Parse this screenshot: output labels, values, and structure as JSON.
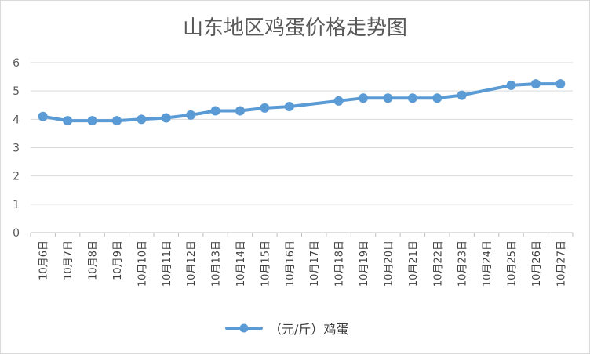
{
  "chart_data": {
    "type": "line",
    "title": "山东地区鸡蛋价格走势图",
    "categories": [
      "10月6日",
      "10月7日",
      "10月8日",
      "10月9日",
      "10月10日",
      "10月11日",
      "10月12日",
      "10月13日",
      "10月14日",
      "10月15日",
      "10月16日",
      "10月17日",
      "10月18日",
      "10月19日",
      "10月20日",
      "10月21日",
      "10月22日",
      "10月23日",
      "10月24日",
      "10月25日",
      "10月26日",
      "10月27日"
    ],
    "series": [
      {
        "name": "（元/斤）鸡蛋",
        "color": "#5B9BD5",
        "values": [
          4.1,
          3.95,
          3.95,
          3.95,
          4.0,
          4.05,
          4.15,
          4.3,
          4.3,
          4.4,
          4.45,
          null,
          4.65,
          4.75,
          4.75,
          4.75,
          4.75,
          4.85,
          null,
          5.2,
          5.25,
          5.25
        ]
      }
    ],
    "yticks": [
      "0",
      "1",
      "2",
      "3",
      "4",
      "5",
      "6"
    ],
    "ylim": [
      0,
      6
    ],
    "xlabel": "",
    "ylabel": "",
    "grid": true,
    "legend_position": "bottom"
  }
}
